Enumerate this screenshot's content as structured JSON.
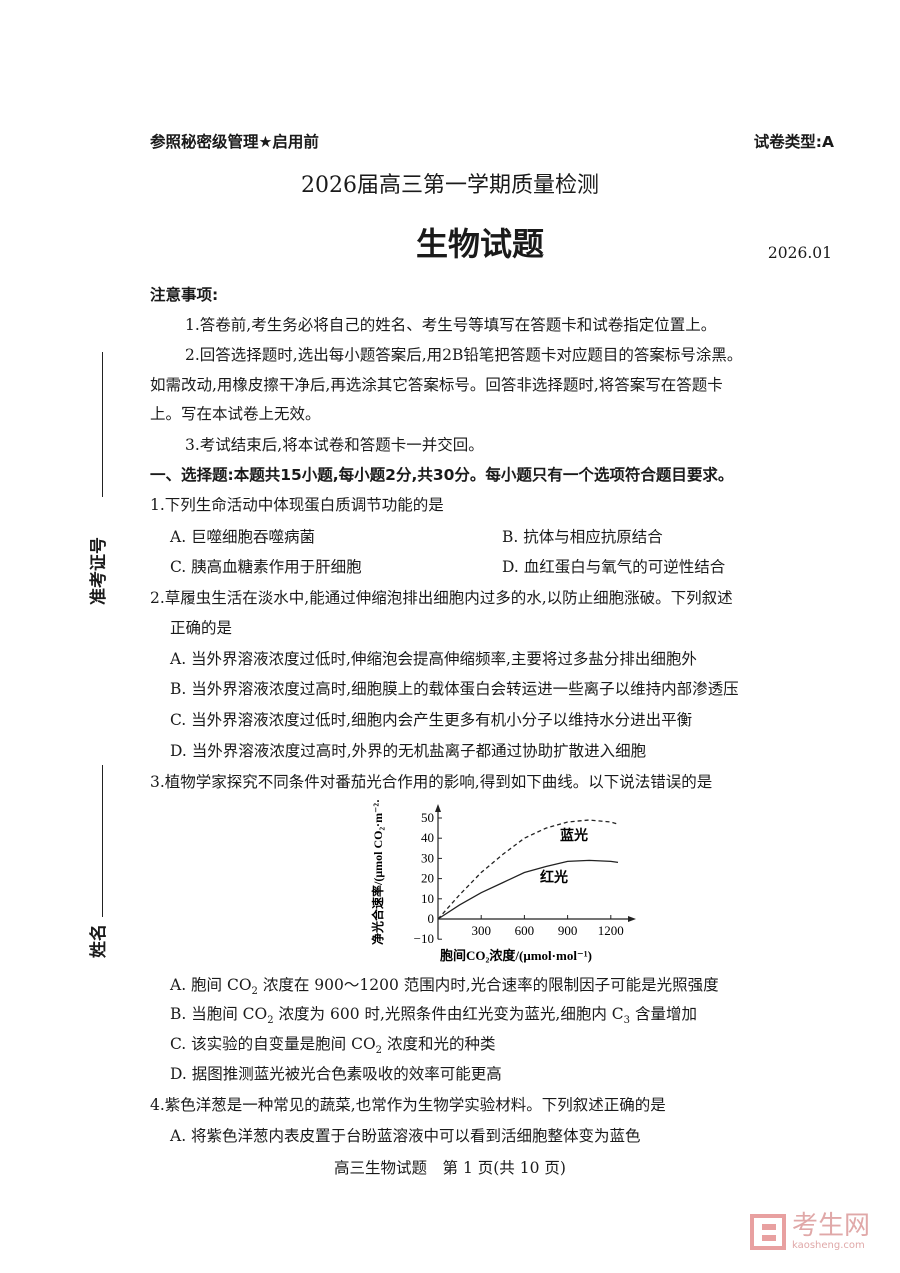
{
  "header": {
    "left": "参照秘密级管理★启用前",
    "right": "试卷类型:A"
  },
  "exam_title": "2026届高三第一学期质量检测",
  "subject_title": "生物试题",
  "date": "2026.01",
  "notice": {
    "heading": "注意事项:",
    "items": [
      "1.答卷前,考生务必将自己的姓名、考生号等填写在答题卡和试卷指定位置上。",
      "2.回答选择题时,选出每小题答案后,用2B铅笔把答题卡对应题目的答案标号涂黑。",
      "如需改动,用橡皮擦干净后,再选涂其它答案标号。回答非选择题时,将答案写在答题卡",
      "上。写在本试卷上无效。",
      "3.考试结束后,将本试卷和答题卡一并交回。"
    ]
  },
  "section1": "一、选择题:本题共15小题,每小题2分,共30分。每小题只有一个选项符合题目要求。",
  "q1": {
    "stem": "1.下列生命活动中体现蛋白质调节功能的是",
    "A": "A. 巨噬细胞吞噬病菌",
    "B": "B. 抗体与相应抗原结合",
    "C": "C. 胰高血糖素作用于肝细胞",
    "D": "D. 血红蛋白与氧气的可逆性结合"
  },
  "q2": {
    "stem1": "2.草履虫生活在淡水中,能通过伸缩泡排出细胞内过多的水,以防止细胞涨破。下列叙述",
    "stem2": "正确的是",
    "A": "A. 当外界溶液浓度过低时,伸缩泡会提高伸缩频率,主要将过多盐分排出细胞外",
    "B": "B. 当外界溶液浓度过高时,细胞膜上的载体蛋白会转运进一些离子以维持内部渗透压",
    "C": "C. 当外界溶液浓度过低时,细胞内会产生更多有机小分子以维持水分进出平衡",
    "D": "D. 当外界溶液浓度过高时,外界的无机盐离子都通过协助扩散进入细胞"
  },
  "q3": {
    "stem": "3.植物学家探究不同条件对番茄光合作用的影响,得到如下曲线。以下说法错误的是",
    "A1": "A. 胞间 CO",
    "A2": " 浓度在 900～1200 范围内时,光合速率的限制因子可能是光照强度",
    "B1": "B. 当胞间 CO",
    "B2": " 浓度为 600 时,光照条件由红光变为蓝光,细胞内 C",
    "B3": " 含量增加",
    "C1": "C. 该实验的自变量是胞间 CO",
    "C2": " 浓度和光的种类",
    "D": "D. 据图推测蓝光被光合色素吸收的效率可能更高",
    "sub2": "2",
    "sub3": "3"
  },
  "q4": {
    "stem": "4.紫色洋葱是一种常见的蔬菜,也常作为生物学实验材料。下列叙述正确的是",
    "A": "A. 将紫色洋葱内表皮置于台盼蓝溶液中可以看到活细胞整体变为蓝色"
  },
  "footer": "高三生物试题　第 1 页(共 10 页)",
  "side": {
    "exam_no": "准考证号",
    "name": "姓名"
  },
  "watermark": {
    "text": "考生网",
    "sub": "kaosheng.com",
    "color": "#e8a0a0"
  },
  "chart_data": {
    "type": "line",
    "xlabel": "胞间CO₂浓度/(μmol·mol⁻¹)",
    "ylabel": "净光合速率/(μmol CO₂·m⁻²·s⁻¹)",
    "xticks": [
      300,
      600,
      900,
      1200
    ],
    "yticks": [
      -10,
      0,
      10,
      20,
      30,
      40,
      50
    ],
    "xlim": [
      0,
      1350
    ],
    "ylim": [
      -10,
      55
    ],
    "series": [
      {
        "name": "蓝光",
        "style": "dashed",
        "x": [
          0,
          150,
          300,
          450,
          600,
          750,
          900,
          1050,
          1200,
          1250
        ],
        "y": [
          0,
          12,
          23,
          32,
          40,
          45,
          48,
          49,
          48,
          47
        ]
      },
      {
        "name": "红光",
        "style": "solid",
        "x": [
          0,
          150,
          300,
          450,
          600,
          750,
          900,
          1050,
          1200,
          1250
        ],
        "y": [
          0,
          7,
          13,
          18,
          23,
          26,
          28.5,
          29,
          28.5,
          28
        ]
      }
    ]
  }
}
